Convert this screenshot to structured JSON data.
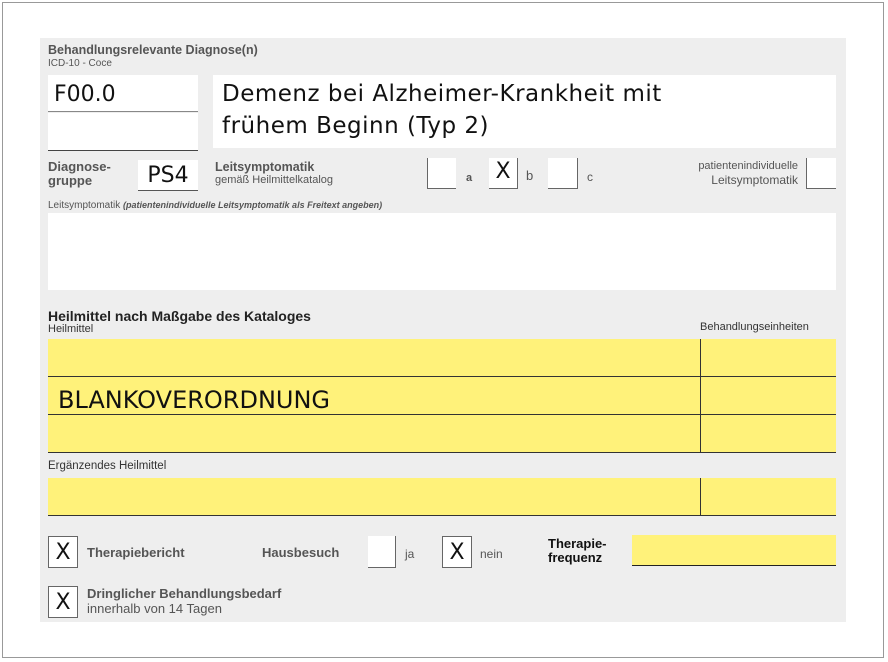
{
  "diagnosis": {
    "title": "Behandlungsrelevante Diagnose(n)",
    "icd_label": "ICD-10 - Coce",
    "icd_code_1": "F00.0",
    "icd_code_2": "",
    "text_line_1": "Demenz bei Alzheimer-Krankheit mit",
    "text_line_2": "frühem Beginn (Typ 2)"
  },
  "group": {
    "label_1": "Diagnose-",
    "label_2": "gruppe",
    "value": "PS4"
  },
  "leitsymptomatik": {
    "title": "Leitsymptomatik",
    "subtitle": "gemäß Heilmittelkatalog",
    "options": [
      {
        "label": "a",
        "checked": false,
        "mark": ""
      },
      {
        "label": "b",
        "checked": true,
        "mark": "X"
      },
      {
        "label": "c",
        "checked": false,
        "mark": ""
      }
    ],
    "individual_1": "patientenindividuelle",
    "individual_2": "Leitsymptomatik",
    "freetext_label": "Leitsymptomatik",
    "freetext_hint": "(patientenindividuelle Leitsymptomatik als Freitext angeben)",
    "freetext_value": ""
  },
  "heilmittel": {
    "title": "Heilmittel nach Maßgabe des Kataloges",
    "col_heilmittel": "Heilmittel",
    "col_units": "Behandlungseinheiten",
    "rows": [
      "",
      "BLANKOVERORDNUNG",
      ""
    ],
    "supplementary_label": "Ergänzendes Heilmittel"
  },
  "options": {
    "therapiebericht": {
      "label": "Therapiebericht",
      "mark": "X"
    },
    "hausbesuch": {
      "label": "Hausbesuch",
      "ja": "ja",
      "nein": "nein",
      "ja_mark": "",
      "nein_mark": "X"
    },
    "frequenz_1": "Therapie-",
    "frequenz_2": "frequenz",
    "frequenz_value": "",
    "dringlich_1": "Dringlicher Behandlungsbedarf",
    "dringlich_2": "innerhalb von 14 Tagen",
    "dringlich_mark": "X"
  },
  "colors": {
    "highlight": "#fff27a",
    "panel": "#eeeeee"
  }
}
